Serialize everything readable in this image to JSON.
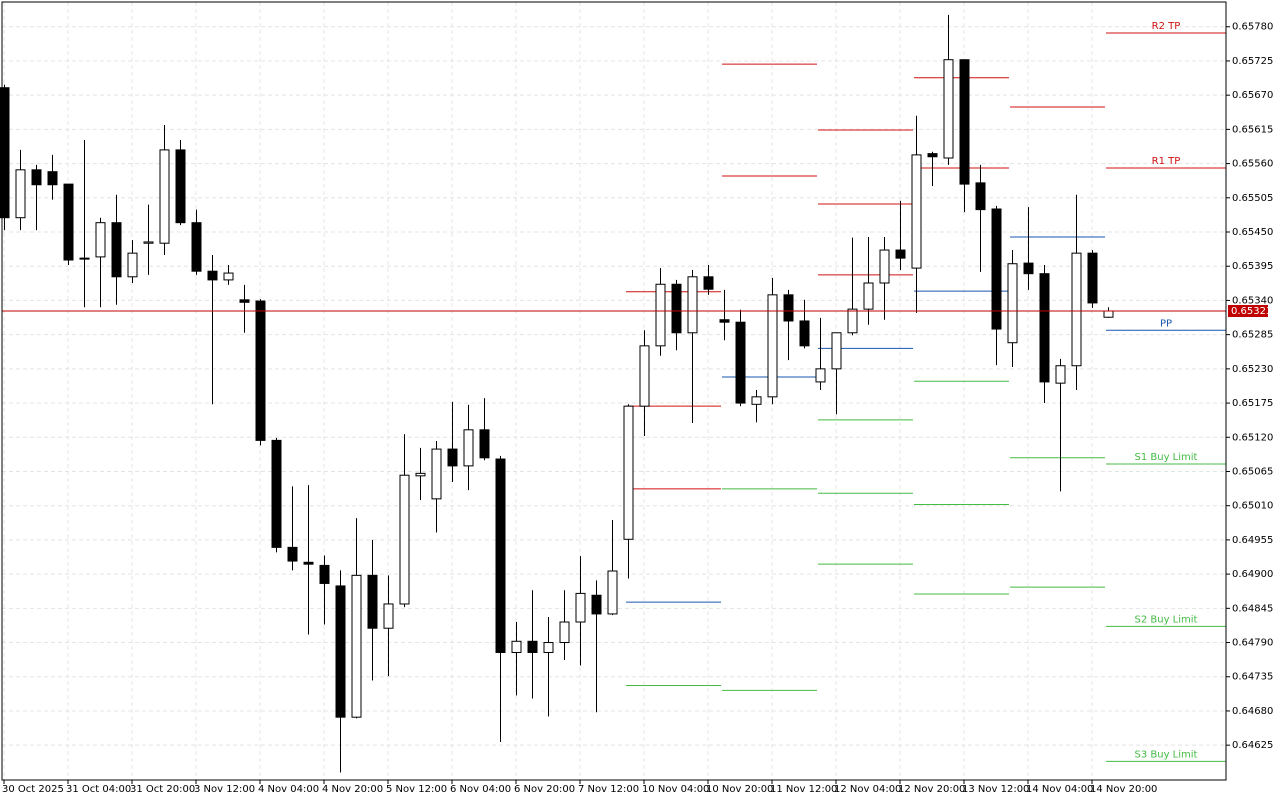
{
  "chart_data": {
    "type": "candlestick",
    "categories": [
      "30 Oct 2025",
      null,
      null,
      null,
      "31 Oct 04:00",
      null,
      null,
      null,
      "31 Oct 20:00",
      null,
      null,
      null,
      "3 Nov 12:00",
      null,
      null,
      null,
      "4 Nov 04:00",
      null,
      null,
      null,
      "4 Nov 20:00",
      null,
      null,
      null,
      "5 Nov 12:00",
      null,
      null,
      null,
      "6 Nov 04:00",
      null,
      null,
      null,
      "6 Nov 20:00",
      null,
      null,
      null,
      "7 Nov 12:00",
      null,
      null,
      null,
      "10 Nov 04:00",
      null,
      null,
      null,
      "10 Nov 20:00",
      null,
      null,
      null,
      "11 Nov 12:00",
      null,
      null,
      null,
      "12 Nov 04:00",
      null,
      null,
      null,
      "12 Nov 20:00",
      null,
      null,
      null,
      "13 Nov 12:00",
      null,
      null,
      null,
      "14 Nov 04:00",
      null,
      null,
      null,
      "14 Nov 20:00",
      null
    ],
    "ohlc": {
      "open": [
        0.65682,
        0.65473,
        0.6555,
        0.65547,
        0.65527,
        0.65408,
        0.6541,
        0.65465,
        0.65378,
        0.65432,
        0.65432,
        0.65582,
        0.65465,
        0.65387,
        0.65373,
        0.65341,
        0.65339,
        0.65115,
        0.64943,
        0.64919,
        0.64914,
        0.64881,
        0.6467,
        0.64898,
        0.64813,
        0.64852,
        0.65058,
        0.65021,
        0.65101,
        0.65074,
        0.65132,
        0.65085,
        0.64774,
        0.64792,
        0.64774,
        0.6479,
        0.64823,
        0.64866,
        0.64836,
        0.64956,
        0.6517,
        0.65267,
        0.65366,
        0.65288,
        0.65378,
        0.65309,
        0.65305,
        0.65173,
        0.65185,
        0.65349,
        0.65307,
        0.65209,
        0.6523,
        0.65288,
        0.65326,
        0.65368,
        0.65421,
        0.65392,
        0.65576,
        0.65569,
        0.65727,
        0.65529,
        0.65487,
        0.65272,
        0.654,
        0.65383,
        0.65207,
        0.65235,
        0.65416,
        0.65313
      ],
      "high": [
        0.65687,
        0.65582,
        0.65558,
        0.65574,
        0.65527,
        0.65598,
        0.65473,
        0.6551,
        0.65437,
        0.65494,
        0.65622,
        0.65598,
        0.65486,
        0.65413,
        0.65397,
        0.65365,
        0.65342,
        0.65119,
        0.65041,
        0.65043,
        0.6493,
        0.64906,
        0.6499,
        0.64955,
        0.64898,
        0.65125,
        0.65103,
        0.65114,
        0.65177,
        0.65172,
        0.65183,
        0.6509,
        0.64823,
        0.64874,
        0.64831,
        0.64874,
        0.64929,
        0.6489,
        0.64987,
        0.65173,
        0.65292,
        0.65392,
        0.65373,
        0.65389,
        0.65397,
        0.65357,
        0.65325,
        0.65196,
        0.65376,
        0.65357,
        0.65341,
        0.65312,
        0.65288,
        0.65441,
        0.65442,
        0.65442,
        0.655,
        0.65637,
        0.65579,
        0.65799,
        0.65727,
        0.65558,
        0.65492,
        0.65421,
        0.6549,
        0.65397,
        0.65246,
        0.6551,
        0.65421,
        0.65329
      ],
      "low": [
        0.65453,
        0.65453,
        0.65453,
        0.65502,
        0.65397,
        0.65329,
        0.65329,
        0.65333,
        0.65368,
        0.65381,
        0.65413,
        0.65461,
        0.65381,
        0.65173,
        0.65365,
        0.65288,
        0.65107,
        0.64935,
        0.64906,
        0.64803,
        0.64819,
        0.64581,
        0.64668,
        0.64729,
        0.64736,
        0.64847,
        0.65019,
        0.64967,
        0.65048,
        0.65035,
        0.65083,
        0.6463,
        0.64705,
        0.647,
        0.64671,
        0.64762,
        0.64753,
        0.64678,
        0.64834,
        0.64893,
        0.65122,
        0.65251,
        0.6526,
        0.65143,
        0.65349,
        0.65276,
        0.6517,
        0.65144,
        0.65173,
        0.65244,
        0.65263,
        0.65196,
        0.65157,
        0.65284,
        0.65301,
        0.65309,
        0.65389,
        0.6532,
        0.65524,
        0.65558,
        0.65482,
        0.65386,
        0.65236,
        0.65233,
        0.65357,
        0.65175,
        0.65033,
        0.65196,
        0.65328,
        0.65312
      ],
      "close": [
        0.65473,
        0.6555,
        0.65526,
        0.65526,
        0.65405,
        0.65407,
        0.65465,
        0.65378,
        0.65416,
        0.65434,
        0.65582,
        0.65465,
        0.65387,
        0.65373,
        0.65384,
        0.65337,
        0.65115,
        0.64943,
        0.64921,
        0.64916,
        0.64885,
        0.6467,
        0.64898,
        0.64813,
        0.64852,
        0.65059,
        0.65062,
        0.65101,
        0.65074,
        0.65132,
        0.65087,
        0.64774,
        0.64792,
        0.64774,
        0.6479,
        0.64823,
        0.64869,
        0.64836,
        0.64905,
        0.6517,
        0.65267,
        0.65366,
        0.65288,
        0.65378,
        0.65358,
        0.65305,
        0.65175,
        0.65185,
        0.65349,
        0.65307,
        0.65267,
        0.6523,
        0.65288,
        0.65326,
        0.65368,
        0.65421,
        0.65408,
        0.65574,
        0.65571,
        0.65727,
        0.65527,
        0.65486,
        0.65294,
        0.65399,
        0.65383,
        0.65209,
        0.65235,
        0.65416,
        0.65336,
        0.65323
      ]
    },
    "up_color": "#ffffff",
    "down_color": "#000000",
    "ylim": [
      0.64569,
      0.65823
    ],
    "yticks": [
      {
        "value": 0.6578,
        "label": "0.65780"
      },
      {
        "value": 0.65725,
        "label": "0.65725"
      },
      {
        "value": 0.6567,
        "label": "0.65670"
      },
      {
        "value": 0.65615,
        "label": "0.65615"
      },
      {
        "value": 0.6556,
        "label": "0.65560"
      },
      {
        "value": 0.65505,
        "label": "0.65505"
      },
      {
        "value": 0.6545,
        "label": "0.65450"
      },
      {
        "value": 0.65395,
        "label": "0.65395"
      },
      {
        "value": 0.6534,
        "label": "0.65340"
      },
      {
        "value": 0.65285,
        "label": "0.65285"
      },
      {
        "value": 0.6523,
        "label": "0.65230"
      },
      {
        "value": 0.65175,
        "label": "0.65175"
      },
      {
        "value": 0.6512,
        "label": "0.65120"
      },
      {
        "value": 0.65065,
        "label": "0.65065"
      },
      {
        "value": 0.6501,
        "label": "0.65010"
      },
      {
        "value": 0.64955,
        "label": "0.64955"
      },
      {
        "value": 0.649,
        "label": "0.64900"
      },
      {
        "value": 0.64845,
        "label": "0.64845"
      },
      {
        "value": 0.6479,
        "label": "0.64790"
      },
      {
        "value": 0.64735,
        "label": "0.64735"
      },
      {
        "value": 0.6468,
        "label": "0.64680"
      },
      {
        "value": 0.64625,
        "label": "0.64625"
      }
    ],
    "grid": true,
    "last_price": {
      "value": 0.65323,
      "label": "0.65323"
    },
    "last_price_color": "#c00000",
    "resistance_color": "#d01010",
    "pivot_color": "#1a56b0",
    "support_color": "#44bb44",
    "pivot_segments": [
      {
        "r": [
          0.65354,
          0.6517,
          0.65037
        ],
        "pp": 0.64855,
        "s": [
          0.64721
        ]
      },
      {
        "r": [
          0.6572,
          0.6554
        ],
        "pp": 0.65217,
        "s": [
          0.65037,
          0.64713
        ]
      },
      {
        "r": [
          0.65614,
          0.65495,
          0.65381
        ],
        "pp": 0.65263,
        "s": [
          0.65148,
          0.6503,
          0.64916
        ]
      },
      {
        "r": [
          0.65698,
          0.65553
        ],
        "pp": 0.65355,
        "s": [
          0.6521,
          0.65012,
          0.64868
        ]
      },
      {
        "r": [
          0.65651
        ],
        "pp": 0.65442,
        "s": [
          0.65087,
          0.64879
        ]
      },
      {
        "r": [
          {
            "value": 0.6577,
            "label": "R2 TP"
          },
          {
            "value": 0.65553,
            "label": "R1 TP"
          }
        ],
        "pp": {
          "value": 0.65292,
          "label": "PP"
        },
        "s": [
          {
            "value": 0.65077,
            "label": "S1 Buy Limit"
          },
          {
            "value": 0.64816,
            "label": "S2 Buy Limit"
          },
          {
            "value": 0.64599,
            "label": "S3 Buy Limit"
          }
        ]
      }
    ]
  }
}
